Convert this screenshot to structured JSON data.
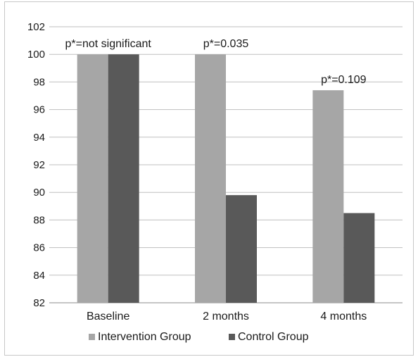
{
  "chart_data": {
    "type": "bar",
    "categories": [
      "Baseline",
      "2 months",
      "4 months"
    ],
    "series": [
      {
        "name": "Intervention Group",
        "color": "#a6a6a6",
        "values": [
          100,
          100,
          97.4
        ]
      },
      {
        "name": "Control Group",
        "color": "#595959",
        "values": [
          100,
          89.8,
          88.5
        ]
      }
    ],
    "annotations": [
      "p*=not significant",
      "p*=0.035",
      "p*=0.109"
    ],
    "annotation_anchor": [
      100,
      100,
      97.4
    ],
    "yticks": [
      82,
      84,
      86,
      88,
      90,
      92,
      94,
      96,
      98,
      100,
      102
    ],
    "ylim": [
      82,
      102
    ],
    "grid": true,
    "legend_position": "bottom",
    "title": "",
    "xlabel": "",
    "ylabel": ""
  }
}
